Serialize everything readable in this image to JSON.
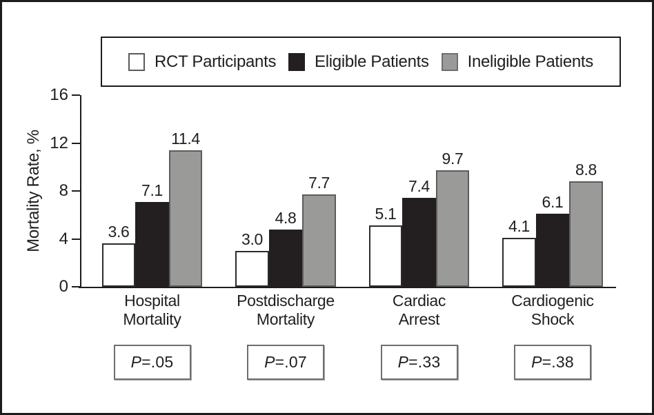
{
  "chart_data": {
    "type": "bar",
    "title": "",
    "ylabel": "Mortality Rate, %",
    "xlabel": "",
    "ylim": [
      0,
      16
    ],
    "yticks": [
      0,
      4,
      8,
      12,
      16
    ],
    "grid": false,
    "legend_position": "top",
    "categories": [
      "Hospital\nMortality",
      "Postdischarge\nMortality",
      "Cardiac\nArrest",
      "Cardiogenic\nShock"
    ],
    "series": [
      {
        "name": "RCT Participants",
        "color": "#ffffff",
        "border_color": "#2b2b2b",
        "values": [
          3.6,
          3.0,
          5.1,
          4.1
        ]
      },
      {
        "name": "Eligible Patients",
        "color": "#231f20",
        "border_color": "#231f20",
        "values": [
          7.1,
          4.8,
          7.4,
          6.1
        ]
      },
      {
        "name": "Ineligible Patients",
        "color": "#9a9a98",
        "border_color": "#5c5c5c",
        "values": [
          11.4,
          7.7,
          9.7,
          8.8
        ]
      }
    ],
    "value_labels": {
      "hospital_mortality": [
        "3.6",
        "7.1",
        "11.4"
      ],
      "postdischarge_mortality": [
        "3.0",
        "4.8",
        "7.7"
      ],
      "cardiac_arrest": [
        "5.1",
        "7.4",
        "9.7"
      ],
      "cardiogenic_shock": [
        "4.1",
        "6.1",
        "8.8"
      ]
    },
    "p_values": [
      "P=.05",
      "P=.07",
      "P=.33",
      "P=.38"
    ]
  },
  "legend": {
    "items": [
      {
        "label": "RCT Participants"
      },
      {
        "label": "Eligible Patients"
      },
      {
        "label": "Ineligible Patients"
      }
    ]
  }
}
